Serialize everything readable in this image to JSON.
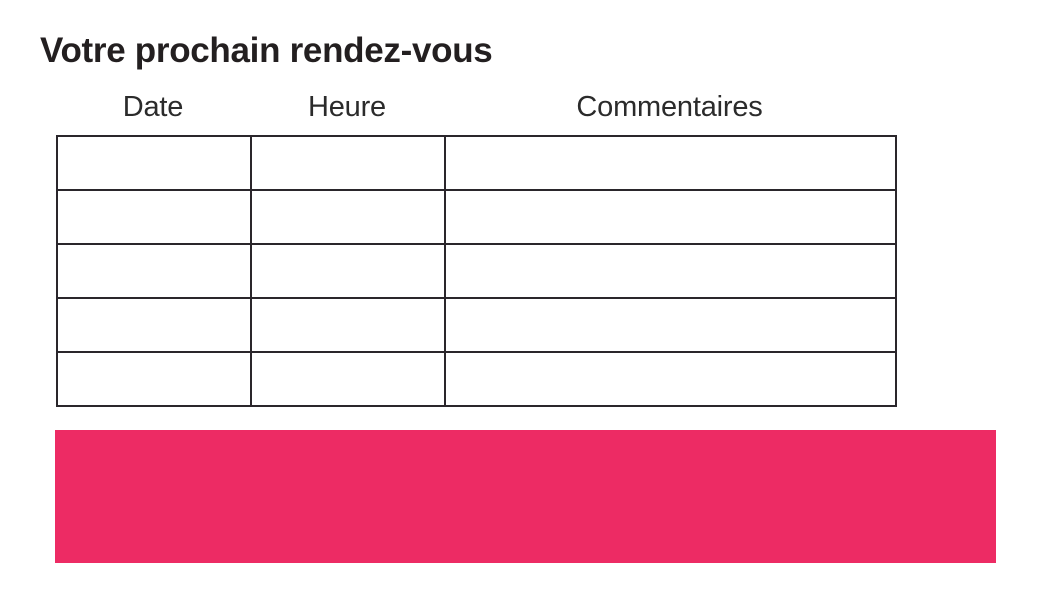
{
  "page": {
    "background": "#ffffff"
  },
  "title": "Votre prochain rendez-vous",
  "table": {
    "columns": [
      {
        "label": "Date"
      },
      {
        "label": "Heure"
      },
      {
        "label": "Commentaires"
      }
    ],
    "rows": [
      [
        "",
        "",
        ""
      ],
      [
        "",
        "",
        ""
      ],
      [
        "",
        "",
        ""
      ],
      [
        "",
        "",
        ""
      ],
      [
        "",
        "",
        ""
      ]
    ]
  },
  "banner": {
    "color": "#ED2B64"
  },
  "colors": {
    "accent_pink": "#ED2B64",
    "border": "#2a262b",
    "title_text": "#231f20",
    "header_text": "#2b2b2b"
  }
}
